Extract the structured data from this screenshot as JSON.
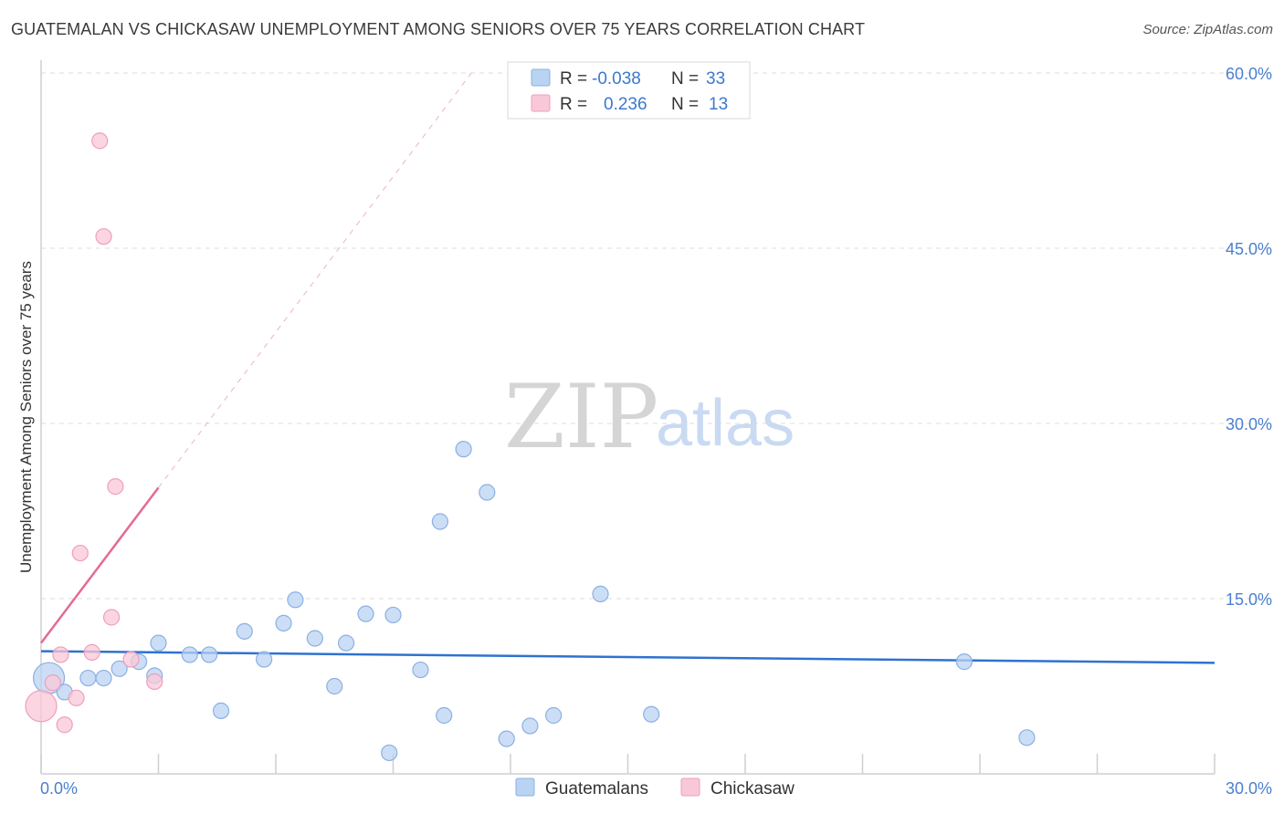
{
  "title": "GUATEMALAN VS CHICKASAW UNEMPLOYMENT AMONG SENIORS OVER 75 YEARS CORRELATION CHART",
  "source": "Source: ZipAtlas.com",
  "watermark": {
    "zip": "ZIP",
    "atlas": "atlas"
  },
  "colors": {
    "blue_fill": "#b9d3f3",
    "blue_stroke": "#8ab0e3",
    "blue_line": "#2f72d0",
    "pink_fill": "#f9c8d8",
    "pink_stroke": "#ef9fb9",
    "pink_line": "#e46b92",
    "grid": "#dddddd",
    "axis_text": "#4a7fd0"
  },
  "legend_top": {
    "rows": [
      {
        "series": "Guatemalans",
        "r_label": "R =",
        "r_value": "-0.038",
        "n_label": "N =",
        "n_value": "33"
      },
      {
        "series": "Chickasaw",
        "r_label": "R =",
        "r_value": "0.236",
        "n_label": "N =",
        "n_value": "13"
      }
    ]
  },
  "chart_data": {
    "type": "scatter",
    "title": "GUATEMALAN VS CHICKASAW UNEMPLOYMENT AMONG SENIORS OVER 75 YEARS CORRELATION CHART",
    "xlabel": "",
    "ylabel": "Unemployment Among Seniors over 75 years",
    "xlim": [
      0,
      30
    ],
    "ylim": [
      0,
      60
    ],
    "x_tick_labels": [
      "0.0%",
      "30.0%"
    ],
    "y_tick_values": [
      15,
      30,
      45,
      60
    ],
    "y_tick_labels": [
      "15.0%",
      "30.0%",
      "45.0%",
      "60.0%"
    ],
    "grid": true,
    "legend": [
      "Guatemalans",
      "Chickasaw"
    ],
    "series": [
      {
        "name": "Guatemalans",
        "points": [
          {
            "x": 0.2,
            "y": 8.2,
            "size": "large"
          },
          {
            "x": 0.6,
            "y": 7.0
          },
          {
            "x": 1.2,
            "y": 8.2
          },
          {
            "x": 1.6,
            "y": 8.2
          },
          {
            "x": 2.0,
            "y": 9.0
          },
          {
            "x": 2.5,
            "y": 9.6
          },
          {
            "x": 2.9,
            "y": 8.4
          },
          {
            "x": 3.0,
            "y": 11.2
          },
          {
            "x": 3.8,
            "y": 10.2
          },
          {
            "x": 4.3,
            "y": 10.2
          },
          {
            "x": 4.6,
            "y": 5.4
          },
          {
            "x": 5.2,
            "y": 12.2
          },
          {
            "x": 5.7,
            "y": 9.8
          },
          {
            "x": 6.2,
            "y": 12.9
          },
          {
            "x": 6.5,
            "y": 14.9
          },
          {
            "x": 7.0,
            "y": 11.6
          },
          {
            "x": 7.5,
            "y": 7.5
          },
          {
            "x": 7.8,
            "y": 11.2
          },
          {
            "x": 8.3,
            "y": 13.7
          },
          {
            "x": 8.9,
            "y": 1.8
          },
          {
            "x": 9.0,
            "y": 13.6
          },
          {
            "x": 9.7,
            "y": 8.9
          },
          {
            "x": 10.2,
            "y": 21.6
          },
          {
            "x": 10.3,
            "y": 5.0
          },
          {
            "x": 10.8,
            "y": 27.8
          },
          {
            "x": 11.4,
            "y": 24.1
          },
          {
            "x": 11.9,
            "y": 3.0
          },
          {
            "x": 12.5,
            "y": 4.1
          },
          {
            "x": 13.1,
            "y": 5.0
          },
          {
            "x": 14.3,
            "y": 15.4
          },
          {
            "x": 15.6,
            "y": 5.1
          },
          {
            "x": 23.6,
            "y": 9.6
          },
          {
            "x": 25.2,
            "y": 3.1
          }
        ],
        "trend": {
          "x": [
            0,
            30
          ],
          "y": [
            10.5,
            9.5
          ]
        }
      },
      {
        "name": "Chickasaw",
        "points": [
          {
            "x": 0.0,
            "y": 5.8,
            "size": "large"
          },
          {
            "x": 0.3,
            "y": 7.8
          },
          {
            "x": 0.5,
            "y": 10.2
          },
          {
            "x": 0.6,
            "y": 4.2
          },
          {
            "x": 0.9,
            "y": 6.5
          },
          {
            "x": 1.0,
            "y": 18.9
          },
          {
            "x": 1.3,
            "y": 10.4
          },
          {
            "x": 1.5,
            "y": 54.2
          },
          {
            "x": 1.6,
            "y": 46.0
          },
          {
            "x": 1.8,
            "y": 13.4
          },
          {
            "x": 1.9,
            "y": 24.6
          },
          {
            "x": 2.3,
            "y": 9.8
          },
          {
            "x": 2.9,
            "y": 7.9
          }
        ],
        "trend": {
          "x": [
            0,
            3.0
          ],
          "y": [
            11.2,
            24.5
          ]
        },
        "trend_extension": {
          "x": [
            3.0,
            11.0
          ],
          "y": [
            24.5,
            60.0
          ]
        }
      }
    ]
  }
}
